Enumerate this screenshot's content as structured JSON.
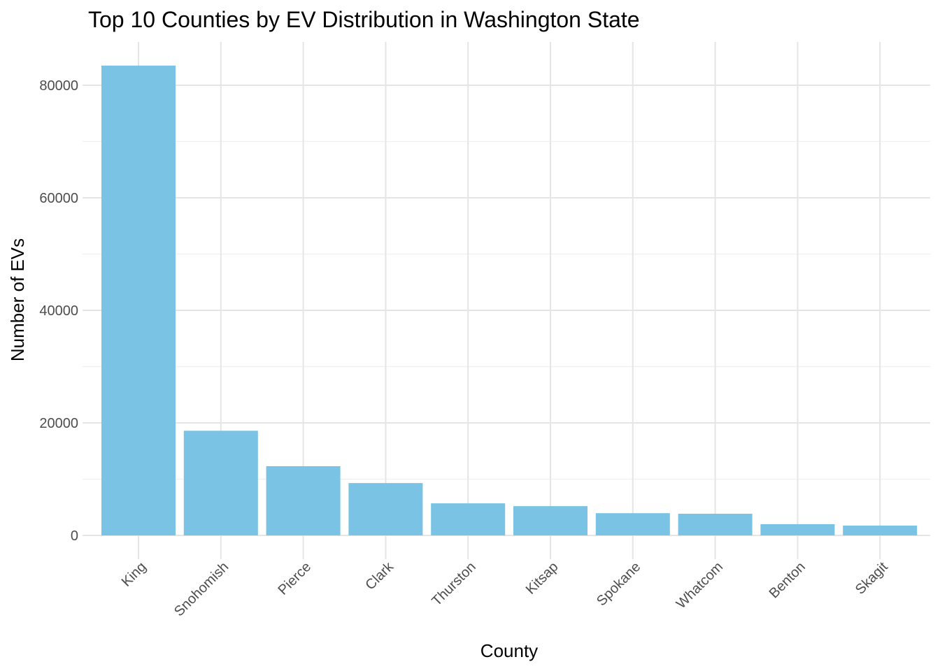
{
  "chart_data": {
    "type": "bar",
    "title": "Top 10 Counties by EV Distribution in Washington State",
    "xlabel": "County",
    "ylabel": "Number of EVs",
    "categories": [
      "King",
      "Snohomish",
      "Pierce",
      "Clark",
      "Thurston",
      "Kitsap",
      "Spokane",
      "Whatcom",
      "Benton",
      "Skagit"
    ],
    "values": [
      83500,
      18600,
      12300,
      9300,
      5700,
      5200,
      3950,
      3850,
      2000,
      1750
    ],
    "yticks": [
      "0",
      "20000",
      "40000",
      "60000",
      "80000"
    ],
    "ylim": [
      -2000,
      87500
    ],
    "bar_color": "#7AC3E4",
    "grid": true,
    "legend": "none"
  }
}
